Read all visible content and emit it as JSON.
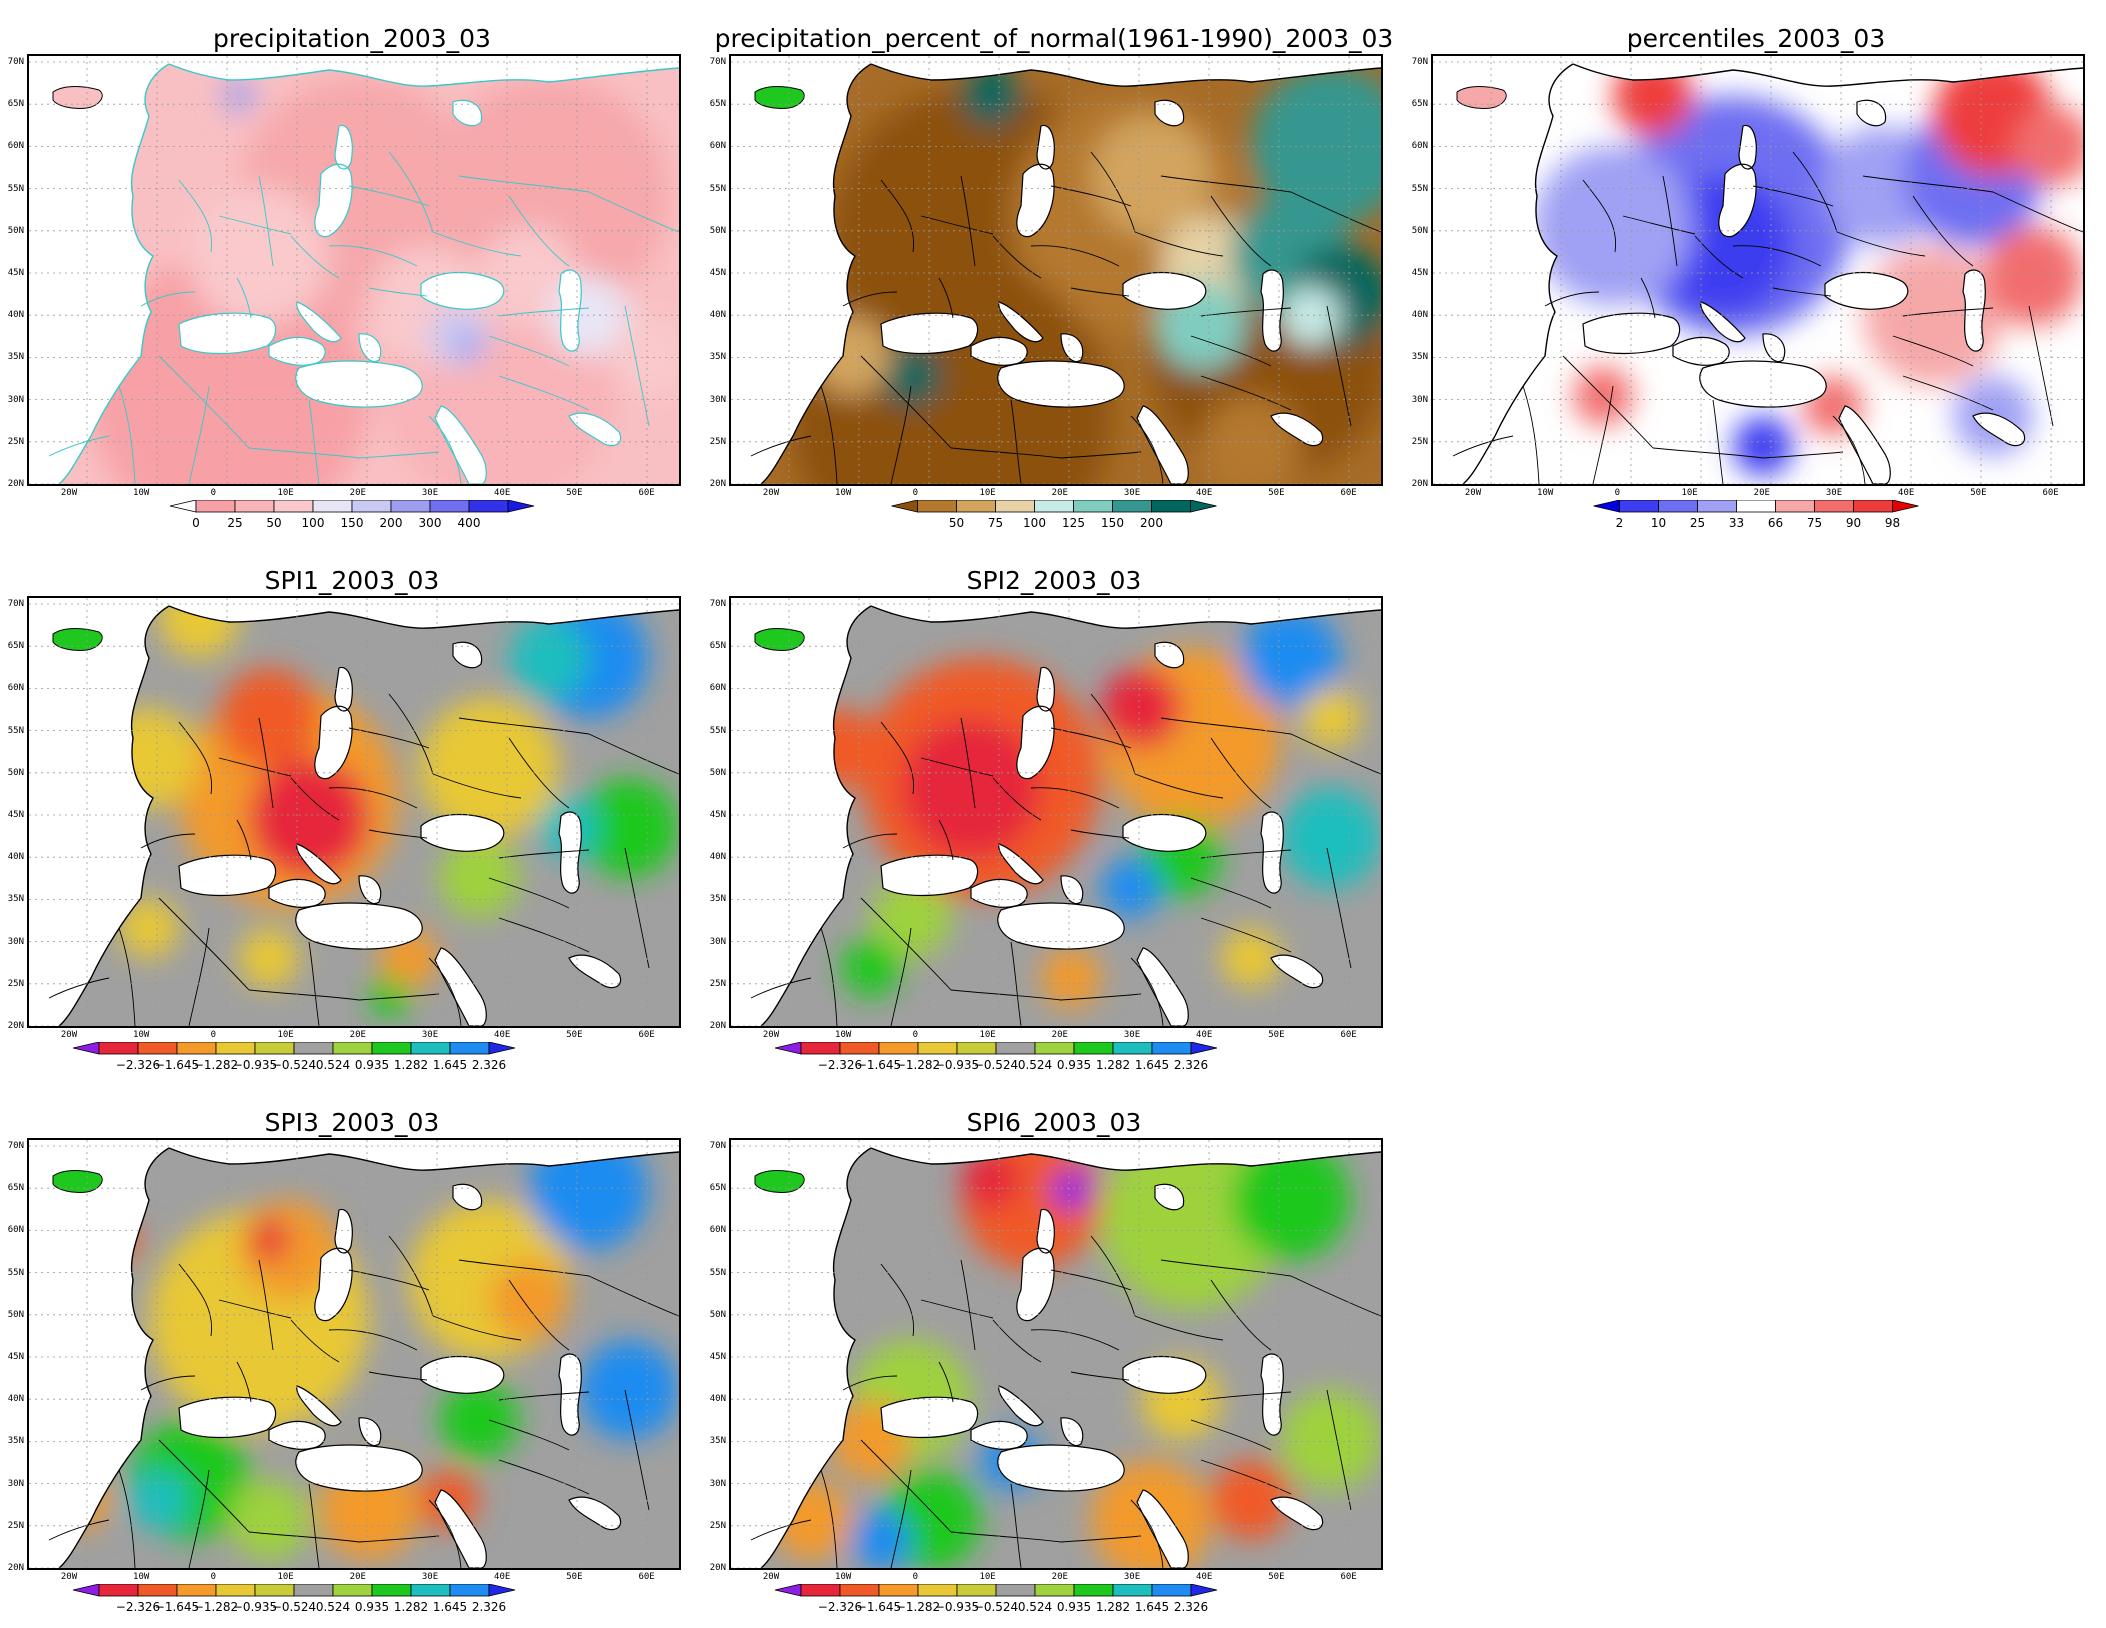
{
  "lat_labels": [
    "70N",
    "65N",
    "60N",
    "55N",
    "50N",
    "45N",
    "40N",
    "35N",
    "30N",
    "25N",
    "20N"
  ],
  "lon_labels": [
    "20W",
    "10W",
    "0",
    "10E",
    "20E",
    "30E",
    "40E",
    "50E",
    "60E"
  ],
  "panels": [
    {
      "title": "precipitation_2003_03",
      "style": "precip",
      "colorbar": {
        "labels": [
          "0",
          "25",
          "50",
          "100",
          "150",
          "200",
          "300",
          "400"
        ],
        "colors": [
          "#f7a1a6",
          "#f8b4b8",
          "#f9c9cc",
          "#e8e6f6",
          "#c9c9f3",
          "#9e9ef0",
          "#6f6ff0",
          "#3232e8"
        ],
        "left_arrow_color": "#ffffff",
        "right_arrow_color": "#1a1ae6"
      }
    },
    {
      "title": "precipitation_percent_of_normal(1961-1990)_2003_03",
      "style": "pct",
      "colorbar": {
        "labels": [
          "50",
          "75",
          "100",
          "125",
          "150",
          "200"
        ],
        "colors": [
          "#b4782e",
          "#d2a45e",
          "#e6d2a6",
          "#c8ebe6",
          "#80cdc0",
          "#35978f",
          "#01665e"
        ],
        "left_arrow_color": "#8c510a",
        "right_arrow_color": "#01665e"
      }
    },
    {
      "title": "percentiles_2003_03",
      "style": "perc",
      "colorbar": {
        "labels": [
          "2",
          "10",
          "25",
          "33",
          "66",
          "75",
          "90",
          "98"
        ],
        "colors": [
          "#3c3cf0",
          "#6e6ef2",
          "#a0a0f4",
          "#ffffff",
          "#f6a8a8",
          "#f26e6e",
          "#ee3c3c"
        ],
        "left_arrow_color": "#0000e6",
        "right_arrow_color": "#e60000"
      }
    },
    {
      "title": "SPI1_2003_03",
      "style": "spi1"
    },
    {
      "title": "SPI2_2003_03",
      "style": "spi2"
    },
    {
      "title": "SPI3_2003_03",
      "style": "spi3"
    },
    {
      "title": "SPI6_2003_03",
      "style": "spi6"
    }
  ],
  "spi_colorbar": {
    "labels": [
      "−2.326",
      "−1.645",
      "−1.282",
      "−0.935",
      "−0.524",
      "0.524",
      "0.935",
      "1.282",
      "1.645",
      "2.326"
    ],
    "colors": [
      "#e6263a",
      "#f05a28",
      "#f39a2a",
      "#e8c836",
      "#c8cc3a",
      "#a0a0a0",
      "#9ed23e",
      "#1ec81e",
      "#1ebebe",
      "#1e8cf0"
    ],
    "left_arrow_color": "#8c1ee6",
    "right_arrow_color": "#1e28e6"
  }
}
